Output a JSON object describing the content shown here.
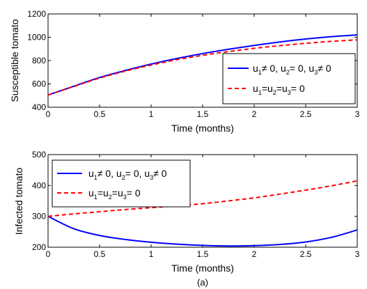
{
  "chart_data": [
    {
      "type": "line",
      "xlabel": "Time (months)",
      "ylabel": "Susceptible  tomato",
      "xlim": [
        0,
        3
      ],
      "ylim": [
        400,
        1200
      ],
      "xticks": [
        "0",
        "0.5",
        "1",
        "1.5",
        "2",
        "2.5",
        "3"
      ],
      "yticks": [
        "400",
        "600",
        "800",
        "1000",
        "1200"
      ],
      "grid": false,
      "legend": "right",
      "x": [
        0,
        0.25,
        0.5,
        0.75,
        1.0,
        1.25,
        1.5,
        1.75,
        2.0,
        2.25,
        2.5,
        2.75,
        3.0
      ],
      "series": [
        {
          "name": "u1≠ 0, u2= 0, u3≠ 0",
          "color": "#0000ff",
          "dash": "solid",
          "values": [
            505,
            580,
            655,
            715,
            770,
            818,
            860,
            897,
            930,
            960,
            985,
            1005,
            1020
          ]
        },
        {
          "name": "u1=u2=u3= 0",
          "color": "#ff0000",
          "dash": "dashed",
          "values": [
            505,
            578,
            650,
            710,
            762,
            808,
            845,
            877,
            905,
            928,
            948,
            965,
            978
          ]
        }
      ]
    },
    {
      "type": "line",
      "xlabel": "Time (months)",
      "ylabel": "Infected tomato",
      "xlim": [
        0,
        3
      ],
      "ylim": [
        200,
        500
      ],
      "xticks": [
        "0",
        "0.5",
        "1",
        "1.5",
        "2",
        "2.5",
        "3"
      ],
      "yticks": [
        "200",
        "300",
        "400",
        "500"
      ],
      "grid": false,
      "legend": "top-left",
      "x": [
        0,
        0.25,
        0.5,
        0.75,
        1.0,
        1.25,
        1.5,
        1.75,
        2.0,
        2.25,
        2.5,
        2.75,
        3.0
      ],
      "series": [
        {
          "name": "u1≠ 0, u2= 0, u3≠ 0",
          "color": "#0000ff",
          "dash": "solid",
          "values": [
            300,
            260,
            238,
            225,
            216,
            210,
            206,
            204,
            205,
            209,
            217,
            232,
            256
          ]
        },
        {
          "name": "u1=u2=u3= 0",
          "color": "#ff0000",
          "dash": "dashed",
          "values": [
            300,
            308,
            315,
            322,
            328,
            334,
            341,
            350,
            360,
            372,
            385,
            399,
            415
          ]
        }
      ]
    }
  ],
  "legend_labels": {
    "controlled": {
      "u": "u",
      "s1": "1",
      "p1": "≠ 0, u",
      "s2": "2",
      "p2": "= 0, u",
      "s3": "3",
      "p3": "≠ 0"
    },
    "uncontrolled": {
      "u": "u",
      "s1": "1",
      "p1": "=u",
      "s2": "2",
      "p2": "=u",
      "s3": "3",
      "p3": "= 0"
    }
  },
  "caption": "(a)"
}
